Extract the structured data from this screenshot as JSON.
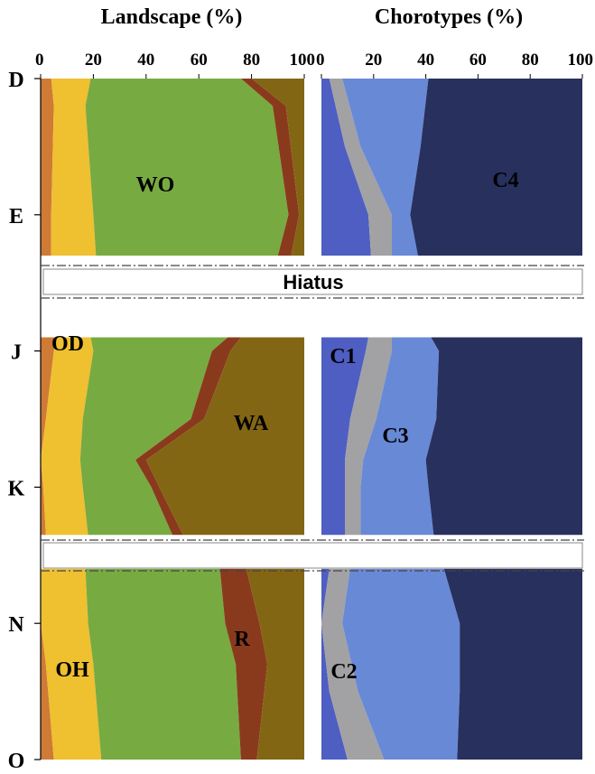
{
  "chart_data": [
    {
      "type": "area",
      "title": "Landscape (%)",
      "x_ticks": [
        "0",
        "20",
        "40",
        "60",
        "80",
        "100"
      ],
      "xlim": [
        0,
        100
      ],
      "y_levels": [
        "D",
        "E",
        "J",
        "K",
        "N",
        "O"
      ],
      "series": [
        {
          "name": "OH",
          "color": "#cf7a35"
        },
        {
          "name": "OD",
          "color": "#efc030"
        },
        {
          "name": "WO",
          "color": "#78aa42"
        },
        {
          "name": "R",
          "color": "#8a3a1c"
        },
        {
          "name": "WA",
          "color": "#836614"
        }
      ],
      "segments": [
        {
          "depth": [
            0,
            0.2,
            1.0,
            1.3
          ],
          "cumulative": [
            [
              4,
              5,
              4,
              4
            ],
            [
              19,
              17,
              20,
              21
            ],
            [
              76,
              88,
              94,
              90
            ],
            [
              80,
              93,
              98,
              95
            ]
          ]
        },
        {
          "depth": [
            1.9,
            2.0,
            2.5,
            2.8,
            3.0,
            3.35
          ],
          "cumulative": [
            [
              6,
              5,
              2,
              0,
              1,
              2
            ],
            [
              19,
              20,
              16,
              15,
              16,
              18
            ],
            [
              71,
              65,
              57,
              36,
              42,
              50
            ],
            [
              76,
              72,
              62,
              40,
              45,
              54
            ]
          ]
        },
        {
          "depth": [
            3.6,
            4.0,
            4.3,
            5.0
          ],
          "cumulative": [
            [
              0,
              0,
              2,
              5
            ],
            [
              17,
              18,
              20,
              23
            ],
            [
              68,
              70,
              74,
              76
            ],
            [
              78,
              83,
              86,
              82
            ]
          ]
        }
      ]
    },
    {
      "type": "area",
      "title": "Chorotypes (%)",
      "x_ticks": [
        "0",
        "20",
        "40",
        "60",
        "80",
        "100"
      ],
      "xlim": [
        0,
        100
      ],
      "y_levels": [
        "D",
        "E",
        "J",
        "K",
        "N",
        "O"
      ],
      "series": [
        {
          "name": "C1",
          "color": "#4e5ec2"
        },
        {
          "name": "C2",
          "color": "#a2a2a4"
        },
        {
          "name": "C3",
          "color": "#6889d6"
        },
        {
          "name": "C4",
          "color": "#28305e"
        }
      ],
      "segments": [
        {
          "depth": [
            0,
            0.5,
            1.0,
            1.3
          ],
          "cumulative": [
            [
              3,
              9,
              18,
              19
            ],
            [
              8,
              15,
              27,
              27
            ],
            [
              41,
              38,
              34,
              37
            ]
          ]
        },
        {
          "depth": [
            1.9,
            2.0,
            2.5,
            2.8,
            3.0,
            3.35
          ],
          "cumulative": [
            [
              18,
              17,
              11,
              9,
              9,
              9
            ],
            [
              27,
              27,
              21,
              16,
              15,
              15
            ],
            [
              42,
              45,
              44,
              40,
              41,
              43
            ]
          ]
        },
        {
          "depth": [
            3.6,
            4.0,
            4.5,
            5.0
          ],
          "cumulative": [
            [
              3,
              0,
              3,
              10
            ],
            [
              11,
              8,
              14,
              24
            ],
            [
              47,
              53,
              53,
              52
            ]
          ]
        }
      ]
    }
  ],
  "gaps": [
    {
      "label": "Hiatus"
    },
    {
      "label": ""
    }
  ],
  "area_labels": {
    "landscape": [
      "WO",
      "OD",
      "WA",
      "R",
      "OH"
    ],
    "chorotypes": [
      "C4",
      "C1",
      "C3",
      "C2"
    ]
  }
}
